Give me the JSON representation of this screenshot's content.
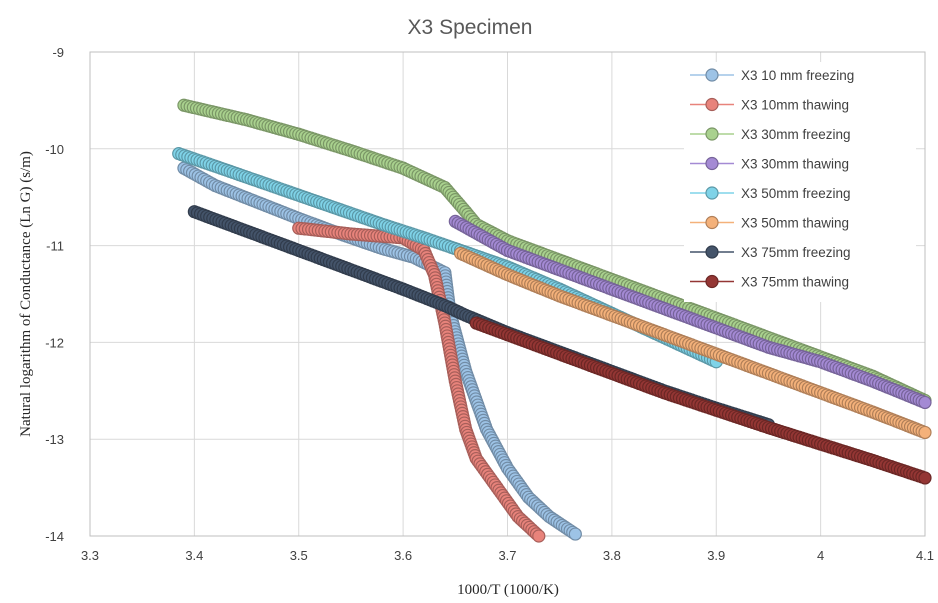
{
  "chart_data": {
    "type": "scatter",
    "title": "X3 Specimen",
    "xlabel": "1000/T  (1000/K)",
    "ylabel": "Natural logarithm of Conductance (Ln G)  (s/m)",
    "xlim": [
      3.3,
      4.1
    ],
    "ylim": [
      -14,
      -9
    ],
    "x_ticks": [
      "3.3",
      "3.4",
      "3.5",
      "3.6",
      "3.7",
      "3.8",
      "3.9",
      "4",
      "4.1"
    ],
    "y_ticks": [
      "-9",
      "-10",
      "-11",
      "-12",
      "-13",
      "-14"
    ],
    "grid": true,
    "legend_position": "top-right",
    "series": [
      {
        "name": "X3 10 mm freezing",
        "color": "#9DC3E6",
        "x": [
          3.39,
          3.42,
          3.46,
          3.5,
          3.54,
          3.58,
          3.61,
          3.64,
          3.645,
          3.66,
          3.68,
          3.7,
          3.72,
          3.74,
          3.765
        ],
        "y": [
          -10.2,
          -10.38,
          -10.55,
          -10.72,
          -10.88,
          -11.03,
          -11.12,
          -11.28,
          -11.7,
          -12.3,
          -12.9,
          -13.3,
          -13.6,
          -13.8,
          -13.98
        ]
      },
      {
        "name": "X3 10mm thawing",
        "color": "#E8837B",
        "x": [
          3.5,
          3.55,
          3.6,
          3.62,
          3.63,
          3.64,
          3.65,
          3.66,
          3.67,
          3.69,
          3.71,
          3.73
        ],
        "y": [
          -10.82,
          -10.88,
          -10.92,
          -11.05,
          -11.3,
          -11.8,
          -12.4,
          -12.9,
          -13.2,
          -13.5,
          -13.8,
          -14.0
        ]
      },
      {
        "name": "X3 30mm freezing",
        "color": "#A9D18E",
        "x": [
          3.39,
          3.45,
          3.5,
          3.55,
          3.6,
          3.64,
          3.66,
          3.67,
          3.7,
          3.75,
          3.8,
          3.85,
          3.9,
          3.95,
          4.0,
          4.05,
          4.1
        ],
        "y": [
          -9.55,
          -9.7,
          -9.85,
          -10.02,
          -10.2,
          -10.4,
          -10.65,
          -10.78,
          -10.95,
          -11.15,
          -11.35,
          -11.55,
          -11.75,
          -11.95,
          -12.15,
          -12.35,
          -12.6
        ]
      },
      {
        "name": "X3 30mm thawing",
        "color": "#A48AD4",
        "x": [
          3.65,
          3.7,
          3.75,
          3.8,
          3.85,
          3.9,
          3.95,
          4.0,
          4.05,
          4.1
        ],
        "y": [
          -10.75,
          -11.05,
          -11.25,
          -11.45,
          -11.65,
          -11.85,
          -12.05,
          -12.2,
          -12.4,
          -12.62
        ]
      },
      {
        "name": "X3 50mm freezing",
        "color": "#7FD3E8",
        "x": [
          3.385,
          3.42,
          3.46,
          3.5,
          3.54,
          3.58,
          3.62,
          3.655,
          3.7,
          3.75,
          3.8,
          3.85,
          3.9
        ],
        "y": [
          -10.05,
          -10.18,
          -10.33,
          -10.48,
          -10.63,
          -10.78,
          -10.92,
          -11.05,
          -11.22,
          -11.45,
          -11.7,
          -11.95,
          -12.2
        ]
      },
      {
        "name": "X3 50mm thawing",
        "color": "#F4B17A",
        "x": [
          3.655,
          3.7,
          3.75,
          3.8,
          3.85,
          3.9,
          3.95,
          4.0,
          4.05,
          4.1
        ],
        "y": [
          -11.08,
          -11.3,
          -11.52,
          -11.72,
          -11.92,
          -12.12,
          -12.32,
          -12.52,
          -12.72,
          -12.93
        ]
      },
      {
        "name": "X3 75mm freezing",
        "color": "#44546A",
        "x": [
          3.4,
          3.45,
          3.5,
          3.55,
          3.6,
          3.64,
          3.66,
          3.7,
          3.75,
          3.8,
          3.85,
          3.9,
          3.95
        ],
        "y": [
          -10.65,
          -10.85,
          -11.05,
          -11.25,
          -11.45,
          -11.62,
          -11.72,
          -11.9,
          -12.1,
          -12.3,
          -12.5,
          -12.68,
          -12.85
        ]
      },
      {
        "name": "X3 75mm thawing",
        "color": "#943634",
        "x": [
          3.67,
          3.7,
          3.75,
          3.8,
          3.85,
          3.9,
          3.95,
          4.0,
          4.05,
          4.1
        ],
        "y": [
          -11.8,
          -11.92,
          -12.12,
          -12.32,
          -12.52,
          -12.7,
          -12.88,
          -13.05,
          -13.22,
          -13.4
        ]
      }
    ]
  }
}
